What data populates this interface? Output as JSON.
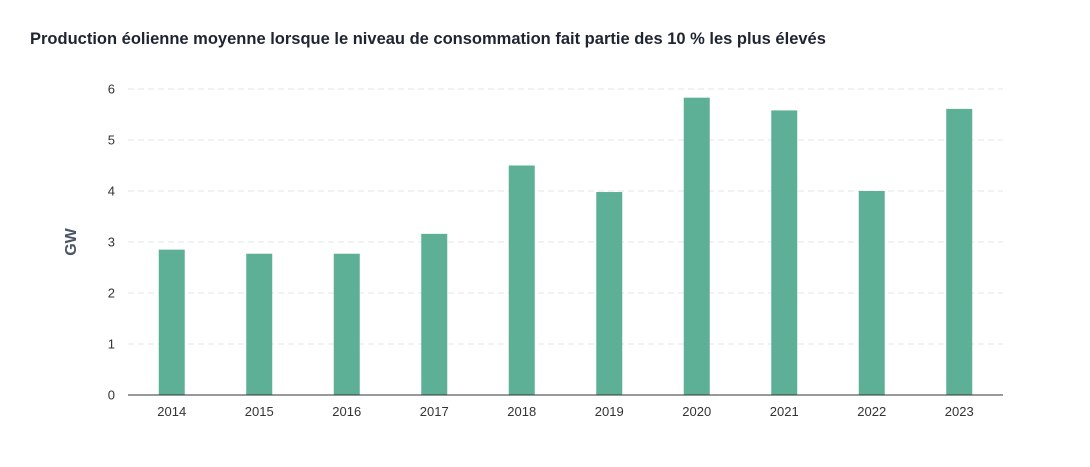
{
  "chart_data": {
    "type": "bar",
    "title": "Production éolienne moyenne lorsque le niveau de consommation fait partie des 10 % les plus élevés",
    "xlabel": "",
    "ylabel": "GW",
    "categories": [
      "2014",
      "2015",
      "2016",
      "2017",
      "2018",
      "2019",
      "2020",
      "2021",
      "2022",
      "2023"
    ],
    "values": [
      2.85,
      2.77,
      2.77,
      3.16,
      4.5,
      3.98,
      5.83,
      5.58,
      4.0,
      5.61
    ],
    "ylim": [
      0,
      6
    ],
    "yticks": [
      "0",
      "1",
      "2",
      "3",
      "4",
      "5",
      "6"
    ],
    "grid": true,
    "bar_color": "#5db096",
    "grid_color": "#e2e6ea",
    "axis_color": "#333333"
  }
}
